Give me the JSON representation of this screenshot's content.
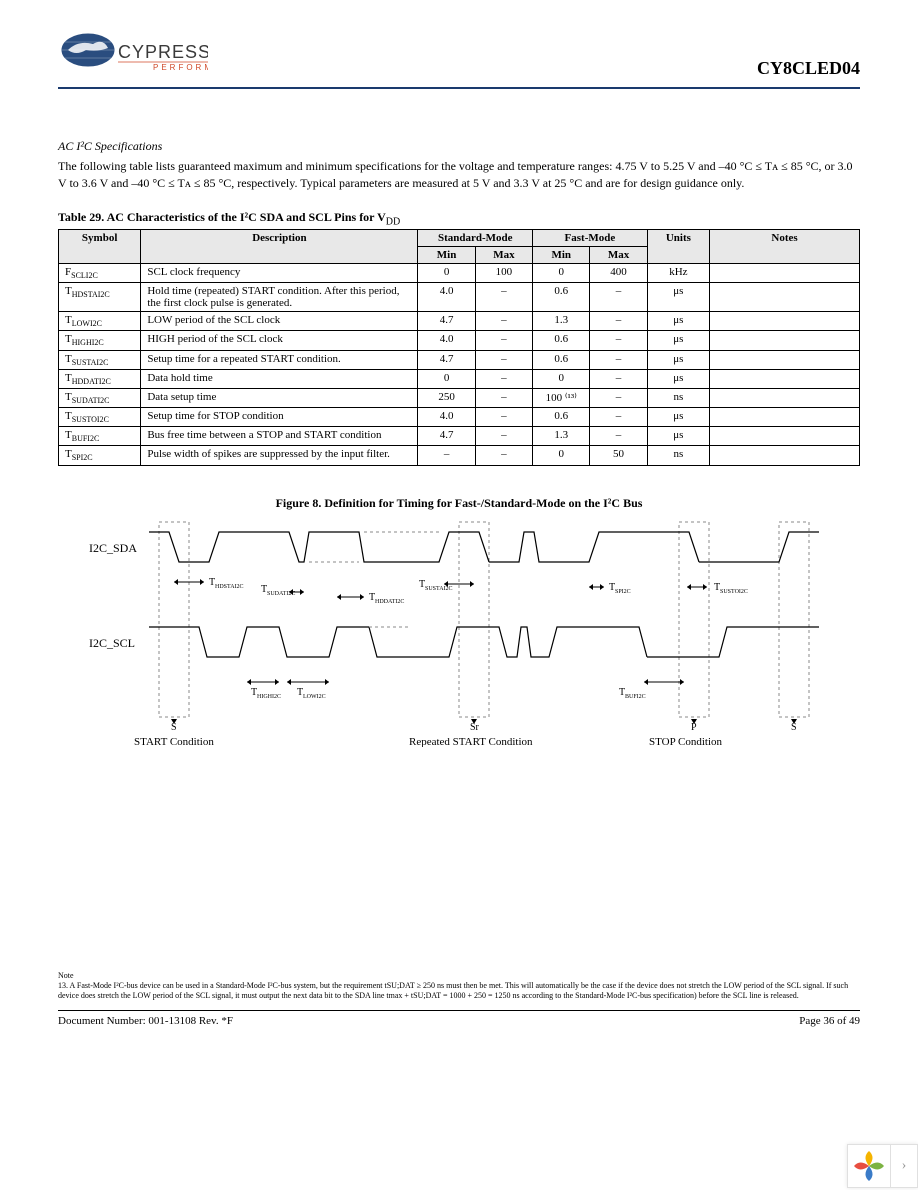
{
  "header": {
    "brand": "CYPRESS",
    "tagline": "PERFORM",
    "part_number": "CY8CLED04"
  },
  "section": {
    "title": "AC I²C Specifications",
    "intro": "The following table lists guaranteed maximum and minimum specifications for the voltage and temperature ranges: 4.75 V to 5.25 V and –40 °C ≤ Tᴀ ≤ 85 °C, or 3.0 V to 3.6 V and –40 °C ≤ Tᴀ ≤ 85 °C, respectively. Typical parameters are measured at 5 V and 3.3 V at 25 °C and are for design guidance only."
  },
  "table": {
    "caption_prefix": "Table 29.  ",
    "caption": "AC Characteristics of the I²C SDA and SCL Pins for V",
    "caption_sub": "DD",
    "columns": [
      "Symbol",
      "Description",
      "Standard-Mode",
      "Fast-Mode",
      "Units",
      "Notes"
    ],
    "subcolumns": [
      "Min",
      "Max",
      "Min",
      "Max"
    ],
    "rows": [
      {
        "sym": "F",
        "sub": "SCLI2C",
        "desc": "SCL clock frequency",
        "smin": "0",
        "smax": "100",
        "fmin": "0",
        "fmax": "400",
        "units": "kHz",
        "notes": ""
      },
      {
        "sym": "T",
        "sub": "HDSTAI2C",
        "desc": "Hold time (repeated) START condition. After this period, the first clock pulse is generated.",
        "smin": "4.0",
        "smax": "–",
        "fmin": "0.6",
        "fmax": "–",
        "units": "μs",
        "notes": ""
      },
      {
        "sym": "T",
        "sub": "LOWI2C",
        "desc": "LOW period of the SCL clock",
        "smin": "4.7",
        "smax": "–",
        "fmin": "1.3",
        "fmax": "–",
        "units": "μs",
        "notes": ""
      },
      {
        "sym": "T",
        "sub": "HIGHI2C",
        "desc": "HIGH period of the SCL clock",
        "smin": "4.0",
        "smax": "–",
        "fmin": "0.6",
        "fmax": "–",
        "units": "μs",
        "notes": ""
      },
      {
        "sym": "T",
        "sub": "SUSTAI2C",
        "desc": "Setup time for a repeated START condition.",
        "smin": "4.7",
        "smax": "–",
        "fmin": "0.6",
        "fmax": "–",
        "units": "μs",
        "notes": ""
      },
      {
        "sym": "T",
        "sub": "HDDATI2C",
        "desc": "Data hold time",
        "smin": "0",
        "smax": "–",
        "fmin": "0",
        "fmax": "–",
        "units": "μs",
        "notes": ""
      },
      {
        "sym": "T",
        "sub": "SUDATI2C",
        "desc": "Data setup time",
        "smin": "250",
        "smax": "–",
        "fmin": "100 ⁽¹³⁾",
        "fmax": "–",
        "units": "ns",
        "notes": ""
      },
      {
        "sym": "T",
        "sub": "SUSTOI2C",
        "desc": "Setup time for STOP condition",
        "smin": "4.0",
        "smax": "–",
        "fmin": "0.6",
        "fmax": "–",
        "units": "μs",
        "notes": ""
      },
      {
        "sym": "T",
        "sub": "BUFI2C",
        "desc": "Bus free time between a STOP and START condition",
        "smin": "4.7",
        "smax": "–",
        "fmin": "1.3",
        "fmax": "–",
        "units": "μs",
        "notes": ""
      },
      {
        "sym": "T",
        "sub": "SPI2C",
        "desc": "Pulse width of spikes are suppressed by the input filter.",
        "smin": "–",
        "smax": "–",
        "fmin": "0",
        "fmax": "50",
        "units": "ns",
        "notes": ""
      }
    ]
  },
  "figure": {
    "caption_prefix": "Figure 8.  ",
    "caption": "Definition for Timing for Fast-/Standard-Mode on the I²C Bus",
    "labels": {
      "sda": "I2C_SDA",
      "scl": "I2C_SCL",
      "start": "START Condition",
      "rstart": "Repeated START Condition",
      "stop": "STOP Condition",
      "s": "S",
      "sr": "Sr",
      "p": "P",
      "t_hdsta": "T",
      "t_sudat": "T",
      "t_hddat": "T",
      "t_susta": "T",
      "t_high": "T",
      "t_low": "T",
      "t_sp": "T",
      "t_susto": "T",
      "t_buf": "T"
    }
  },
  "notes": {
    "heading": "Note",
    "text": "13. A Fast-Mode I²C-bus device can be used in a Standard-Mode I²C-bus system, but the requirement tSU;DAT ≥ 250 ns must then be met. This will automatically be the case if the device does not stretch the LOW period of the SCL signal. If such device does stretch the LOW period of the SCL signal, it must output the next data bit to the SDA line tmax + tSU;DAT = 1000 + 250 = 1250 ns according to the Standard-Mode I²C-bus specification) before the SCL line is released."
  },
  "footer": {
    "doc": "Document Number: 001-13108  Rev. *F",
    "page": "Page 36 of 49"
  },
  "colors": {
    "header_rule": "#1a3a6e",
    "table_header_bg": "#e8e8e8",
    "logo_globe": "#2a4d7f",
    "logo_text": "#3a3a3a",
    "tagline": "#d04a2a",
    "leaf1": "#f5b400",
    "leaf2": "#7cb342",
    "leaf3": "#3a7bc8",
    "leaf4": "#e84e40"
  }
}
